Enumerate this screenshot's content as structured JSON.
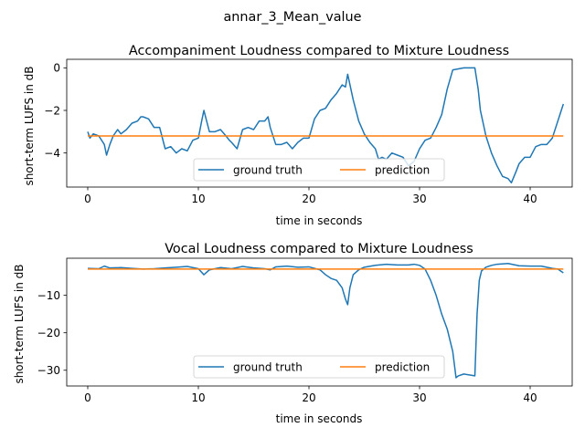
{
  "suptitle": "annar_3_Mean_value",
  "colors": {
    "ground_truth": "#1f77b4",
    "prediction": "#ff7f0e"
  },
  "chart_data": [
    {
      "type": "line",
      "title": "Accompaniment Loudness compared to Mixture Loudness",
      "xlabel": "time in seconds",
      "ylabel": "short-term LUFS in dB",
      "xlim": [
        -1.9,
        43.8
      ],
      "ylim": [
        -5.6,
        0.4
      ],
      "xticks": [
        0,
        10,
        20,
        30,
        40
      ],
      "yticks": [
        -4,
        -2,
        0
      ],
      "legend": {
        "placement": "lower-center",
        "entries": [
          "ground truth",
          "prediction"
        ]
      },
      "series": [
        {
          "name": "ground truth",
          "x": [
            0,
            0.2,
            0.5,
            1.0,
            1.5,
            1.7,
            2.0,
            2.3,
            2.7,
            3.0,
            3.5,
            4.0,
            4.5,
            4.8,
            5.0,
            5.5,
            6.0,
            6.5,
            7.0,
            7.5,
            8.0,
            8.5,
            9.0,
            9.5,
            10.0,
            10.3,
            10.5,
            11.0,
            11.5,
            12.0,
            12.5,
            12.8,
            13.0,
            13.5,
            14.0,
            14.5,
            15.0,
            15.5,
            16.0,
            16.3,
            16.5,
            17.0,
            17.5,
            18.0,
            18.5,
            19.0,
            19.5,
            20.0,
            20.5,
            21.0,
            21.5,
            22.0,
            22.5,
            23.0,
            23.3,
            23.5,
            24.0,
            24.5,
            25.0,
            25.5,
            26.0,
            26.3,
            26.6,
            27.0,
            27.5,
            28.0,
            28.5,
            29.0,
            29.5,
            30.0,
            30.5,
            31.0,
            31.5,
            32.0,
            32.5,
            33.0,
            34.0,
            35.0,
            35.3,
            35.5,
            36.0,
            36.5,
            37.0,
            37.5,
            38.0,
            38.3,
            38.7,
            39.0,
            39.5,
            40.0,
            40.5,
            41.0,
            41.5,
            42.0,
            42.5,
            43.0
          ],
          "y": [
            -3.0,
            -3.3,
            -3.1,
            -3.2,
            -3.6,
            -4.1,
            -3.6,
            -3.2,
            -2.9,
            -3.1,
            -2.9,
            -2.6,
            -2.5,
            -2.3,
            -2.3,
            -2.4,
            -2.8,
            -2.8,
            -3.8,
            -3.7,
            -4.0,
            -3.8,
            -3.9,
            -3.4,
            -3.3,
            -2.5,
            -2.0,
            -3.0,
            -3.0,
            -2.9,
            -3.2,
            -3.4,
            -3.5,
            -3.8,
            -2.9,
            -2.8,
            -2.9,
            -2.5,
            -2.5,
            -2.3,
            -2.8,
            -3.6,
            -3.6,
            -3.5,
            -3.8,
            -3.5,
            -3.3,
            -3.3,
            -2.4,
            -2.0,
            -1.9,
            -1.5,
            -1.2,
            -0.8,
            -0.9,
            -0.3,
            -1.5,
            -2.5,
            -3.1,
            -3.5,
            -3.8,
            -4.3,
            -4.2,
            -4.3,
            -4.0,
            -4.1,
            -4.2,
            -4.6,
            -4.4,
            -3.8,
            -3.4,
            -3.3,
            -2.8,
            -2.2,
            -1.0,
            -0.1,
            0.0,
            0.0,
            -1.0,
            -2.0,
            -3.2,
            -4.0,
            -4.6,
            -5.1,
            -5.2,
            -5.4,
            -4.9,
            -4.5,
            -4.2,
            -4.2,
            -3.7,
            -3.6,
            -3.6,
            -3.3,
            -2.5,
            -1.7
          ]
        },
        {
          "name": "prediction",
          "x": [
            0,
            43
          ],
          "y": [
            -3.2,
            -3.2
          ]
        }
      ]
    },
    {
      "type": "line",
      "title": "Vocal Loudness compared to Mixture Loudness",
      "xlabel": "time in seconds",
      "ylabel": "short-term LUFS in dB",
      "xlim": [
        -1.9,
        43.8
      ],
      "ylim": [
        -34.2,
        -0.1
      ],
      "xticks": [
        0,
        10,
        20,
        30,
        40
      ],
      "yticks": [
        -30,
        -20,
        -10
      ],
      "legend": {
        "placement": "lower-center",
        "entries": [
          "ground truth",
          "prediction"
        ]
      },
      "series": [
        {
          "name": "ground truth",
          "x": [
            0,
            1,
            1.5,
            2,
            3,
            4,
            5,
            6,
            7,
            8,
            9,
            10,
            10.5,
            11,
            12,
            13,
            14,
            15,
            16,
            16.5,
            17,
            18,
            19,
            20,
            21,
            21.5,
            22,
            22.5,
            23,
            23.3,
            23.5,
            23.7,
            24,
            24.5,
            25,
            26,
            27,
            28,
            29,
            29.5,
            30,
            30.5,
            31,
            31.5,
            32,
            32.5,
            33,
            33.3,
            33.5,
            34,
            35,
            35.2,
            35.4,
            35.6,
            36,
            36.5,
            37,
            38,
            39,
            40,
            41,
            42,
            42.5,
            43
          ],
          "y": [
            -2.8,
            -2.9,
            -2.2,
            -2.7,
            -2.6,
            -2.8,
            -3.0,
            -2.9,
            -2.7,
            -2.5,
            -2.3,
            -2.9,
            -4.5,
            -3.2,
            -2.6,
            -2.9,
            -2.3,
            -2.7,
            -2.9,
            -3.2,
            -2.4,
            -2.2,
            -2.5,
            -2.4,
            -3.2,
            -4.5,
            -5.5,
            -6.0,
            -8.0,
            -11.0,
            -12.5,
            -8.0,
            -4.5,
            -3.2,
            -2.5,
            -2.0,
            -1.7,
            -1.9,
            -1.9,
            -1.7,
            -2.0,
            -3.0,
            -6.0,
            -10.0,
            -15.0,
            -19.0,
            -25.0,
            -32.0,
            -31.5,
            -31.0,
            -31.5,
            -15.0,
            -6.0,
            -3.5,
            -2.5,
            -2.0,
            -1.7,
            -1.5,
            -2.1,
            -2.2,
            -2.2,
            -2.8,
            -3.0,
            -4.0
          ]
        },
        {
          "name": "prediction",
          "x": [
            0,
            43
          ],
          "y": [
            -3.0,
            -3.0
          ]
        }
      ]
    }
  ]
}
